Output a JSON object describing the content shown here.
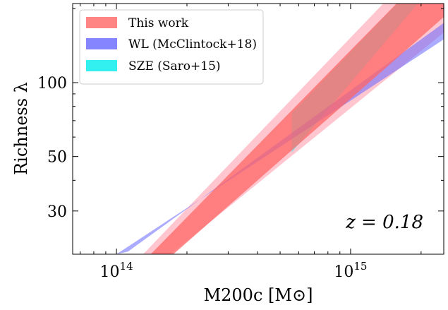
{
  "chart_data": {
    "type": "area",
    "xlabel": "M200c [M⊙]",
    "ylabel": "Richness λ",
    "xscale": "log",
    "yscale": "log",
    "xlim": [
      65000000000000.0,
      2500000000000000.0
    ],
    "ylim": [
      20,
      210
    ],
    "xticks": [
      {
        "value": 100000000000000.0,
        "mantissa": "10",
        "exp": "14"
      },
      {
        "value": 1000000000000000.0,
        "mantissa": "10",
        "exp": "15"
      }
    ],
    "yticks": [
      {
        "value": 30,
        "label": "30"
      },
      {
        "value": 50,
        "label": "50"
      },
      {
        "value": 100,
        "label": "100"
      }
    ],
    "grid": false,
    "legend_position": "top-left",
    "annotation": "z = 0.18",
    "series": [
      {
        "name": "This work",
        "color": "#ff6666",
        "outer_color": "#ffc0cb",
        "mass": [
          140000000000000.0,
          2500000000000000.0
        ],
        "inner_band": {
          "lower": [
            20,
            185
          ],
          "upper": [
            20,
            330
          ]
        },
        "outer_band": {
          "lower": [
            20,
            160
          ],
          "upper": [
            20,
            380
          ]
        },
        "outer_mass": [
          130000000000000.0,
          2500000000000000.0
        ],
        "outer_mass_upper": [
          170000000000000.0,
          2500000000000000.0
        ]
      },
      {
        "name": "WL (McClintock+18)",
        "color": "#6666ff",
        "mass": [
          100000000000000.0,
          2500000000000000.0
        ],
        "lower": [
          20,
          150
        ],
        "upper": [
          20.5,
          175
        ]
      },
      {
        "name": "SZE (Saro+15)",
        "color": "#33f0f0",
        "mass": [
          560000000000000.0,
          2500000000000000.0
        ],
        "lower": [
          52,
          280
        ],
        "upper": [
          75,
          330
        ]
      }
    ]
  }
}
